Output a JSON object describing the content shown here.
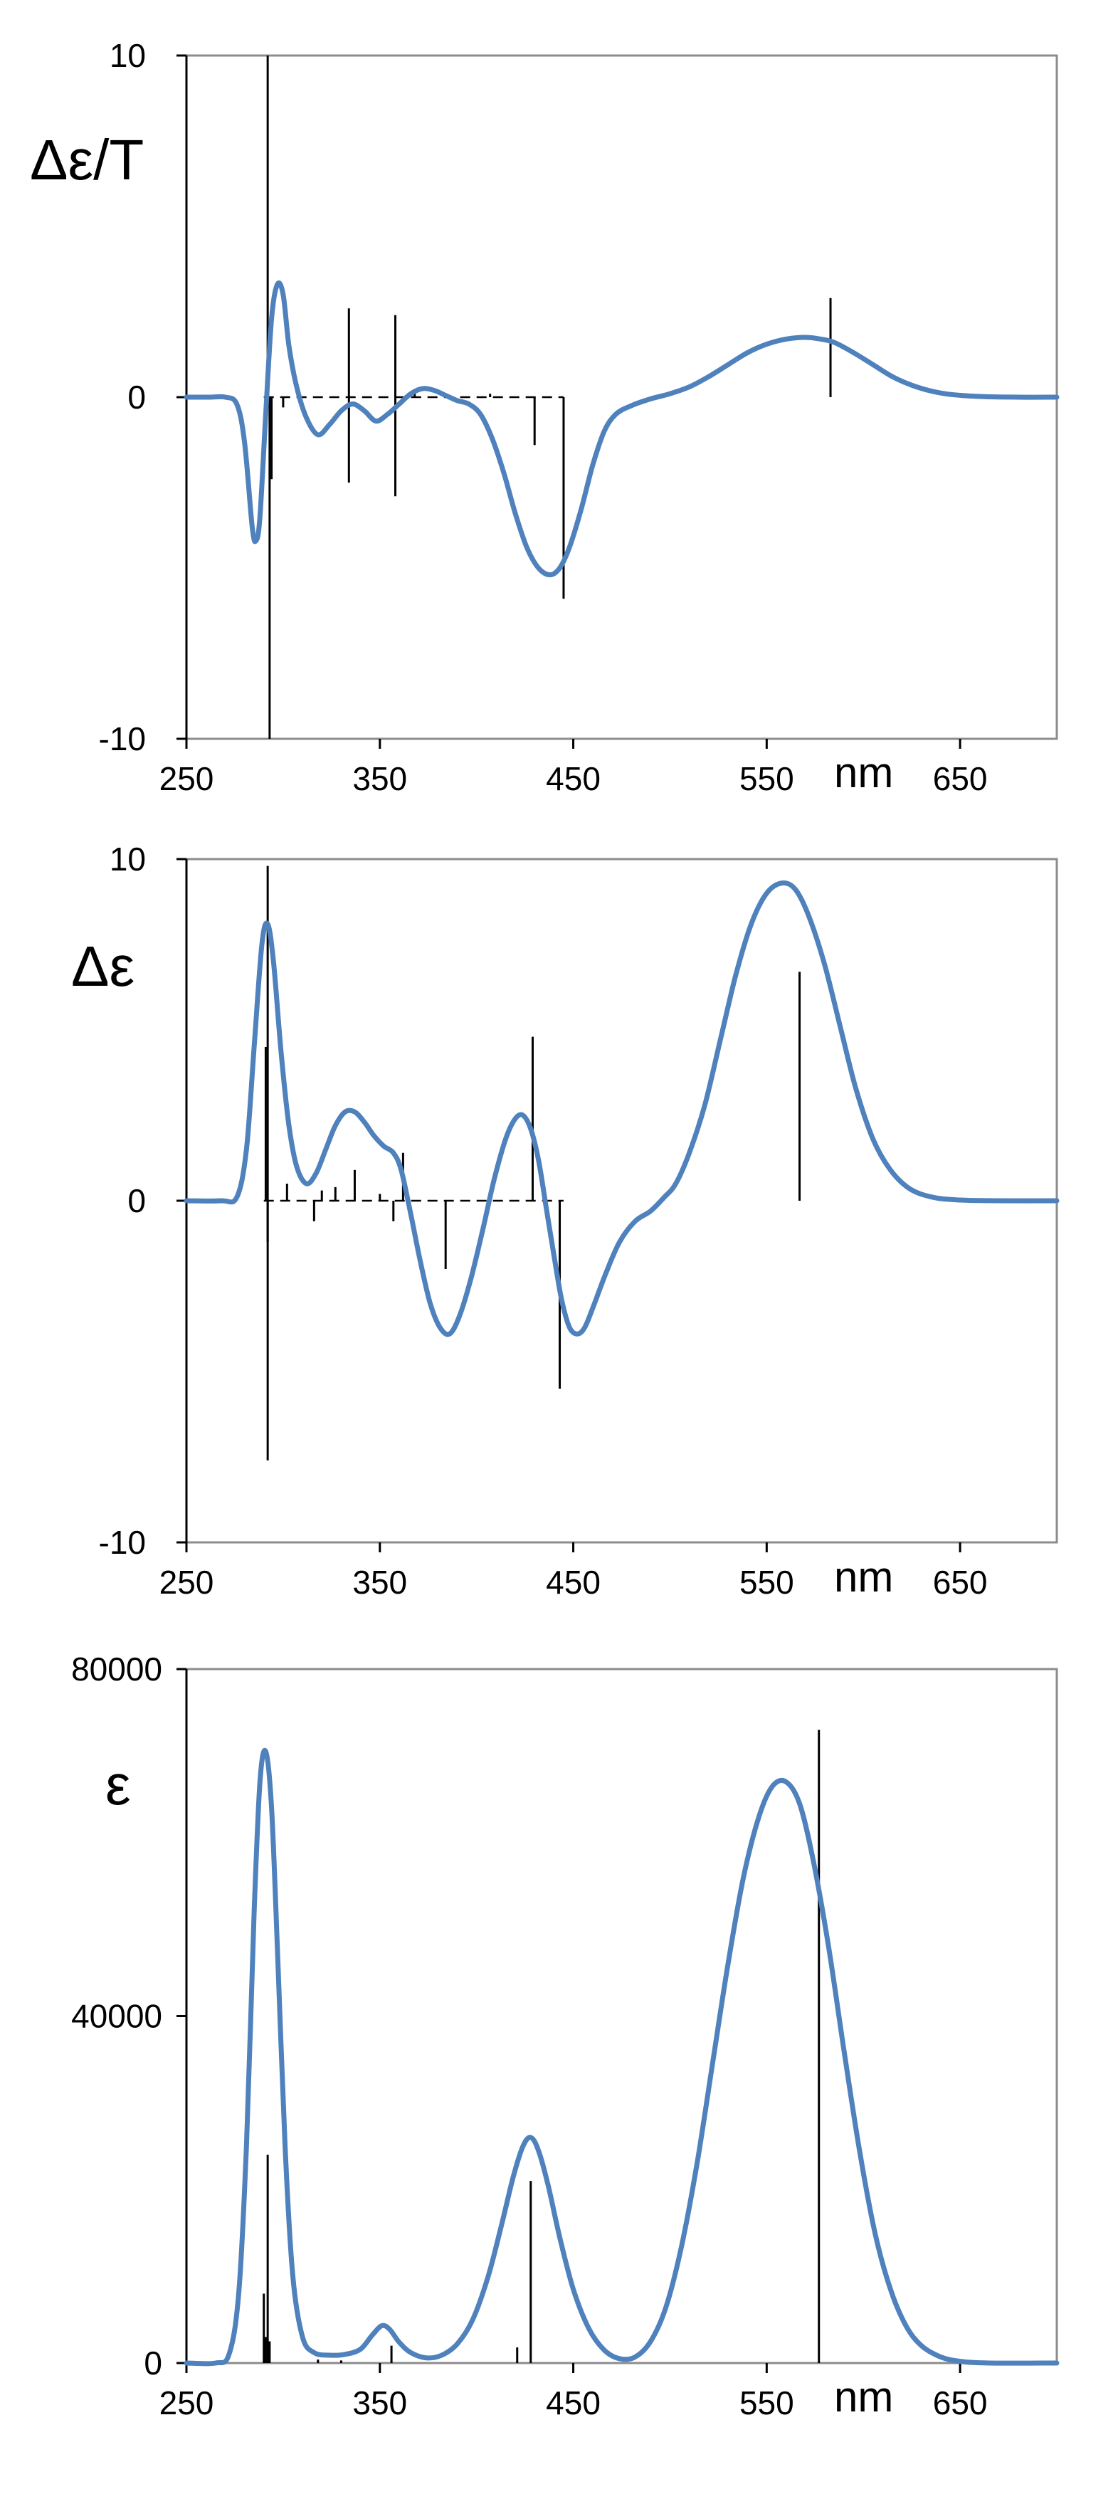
{
  "chart_data": [
    {
      "type": "line",
      "ylabel": "Δε/T",
      "x_unit": "nm",
      "xlim": [
        250,
        700
      ],
      "ylim": [
        -10,
        10
      ],
      "xticks": [
        250,
        350,
        450,
        550,
        650
      ],
      "yticks": [
        10,
        0,
        -10
      ],
      "grid": false,
      "baseline_dashed": [
        290,
        445
      ],
      "series": [
        {
          "color": "#4f81bd",
          "points": [
            [
              250,
              0
            ],
            [
              262,
              0
            ],
            [
              270,
              0
            ],
            [
              276,
              -0.2
            ],
            [
              280,
              -1.3
            ],
            [
              284,
              -3.8
            ],
            [
              286,
              -4.2
            ],
            [
              288,
              -3.5
            ],
            [
              291,
              -0.5
            ],
            [
              294,
              2.3
            ],
            [
              297,
              3.3
            ],
            [
              300,
              3.0
            ],
            [
              303,
              1.5
            ],
            [
              307,
              0.3
            ],
            [
              312,
              -0.6
            ],
            [
              318,
              -1.1
            ],
            [
              324,
              -0.8
            ],
            [
              330,
              -0.4
            ],
            [
              336,
              -0.2
            ],
            [
              342,
              -0.4
            ],
            [
              348,
              -0.7
            ],
            [
              354,
              -0.5
            ],
            [
              360,
              -0.2
            ],
            [
              366,
              0.1
            ],
            [
              372,
              0.25
            ],
            [
              378,
              0.2
            ],
            [
              384,
              0.05
            ],
            [
              390,
              -0.1
            ],
            [
              396,
              -0.2
            ],
            [
              402,
              -0.5
            ],
            [
              408,
              -1.2
            ],
            [
              414,
              -2.2
            ],
            [
              420,
              -3.4
            ],
            [
              426,
              -4.4
            ],
            [
              432,
              -5.0
            ],
            [
              438,
              -5.2
            ],
            [
              443,
              -5.0
            ],
            [
              448,
              -4.4
            ],
            [
              454,
              -3.3
            ],
            [
              460,
              -2.0
            ],
            [
              466,
              -1.0
            ],
            [
              472,
              -0.5
            ],
            [
              480,
              -0.25
            ],
            [
              490,
              -0.05
            ],
            [
              500,
              0.1
            ],
            [
              510,
              0.3
            ],
            [
              520,
              0.6
            ],
            [
              530,
              0.95
            ],
            [
              540,
              1.3
            ],
            [
              550,
              1.55
            ],
            [
              560,
              1.7
            ],
            [
              570,
              1.75
            ],
            [
              578,
              1.7
            ],
            [
              585,
              1.6
            ],
            [
              595,
              1.3
            ],
            [
              605,
              0.95
            ],
            [
              615,
              0.6
            ],
            [
              625,
              0.35
            ],
            [
              635,
              0.18
            ],
            [
              645,
              0.08
            ],
            [
              660,
              0.02
            ],
            [
              680,
              0
            ],
            [
              700,
              0
            ]
          ]
        }
      ],
      "sticks": [
        [
          292,
          10
        ],
        [
          293,
          -10
        ],
        [
          294,
          -2.4
        ],
        [
          300,
          -0.3
        ],
        [
          334,
          2.6
        ],
        [
          334,
          -2.5
        ],
        [
          358,
          2.4
        ],
        [
          358,
          -2.9
        ],
        [
          368,
          0.2
        ],
        [
          407,
          0.1
        ],
        [
          430,
          -1.4
        ],
        [
          445,
          -5.9
        ],
        [
          583,
          2.9
        ]
      ]
    },
    {
      "type": "line",
      "ylabel": "Δε",
      "x_unit": "nm",
      "xlim": [
        250,
        700
      ],
      "ylim": [
        -10,
        10
      ],
      "xticks": [
        250,
        350,
        450,
        550,
        650
      ],
      "yticks": [
        10,
        0,
        -10
      ],
      "grid": false,
      "baseline_dashed": [
        290,
        445
      ],
      "series": [
        {
          "color": "#4f81bd",
          "points": [
            [
              250,
              0
            ],
            [
              268,
              0
            ],
            [
              276,
              0.1
            ],
            [
              281,
              1.5
            ],
            [
              285,
              4.5
            ],
            [
              289,
              7.5
            ],
            [
              292,
              8.1
            ],
            [
              295,
              7.0
            ],
            [
              299,
              4.3
            ],
            [
              303,
              2.2
            ],
            [
              307,
              1.0
            ],
            [
              312,
              0.5
            ],
            [
              317,
              0.8
            ],
            [
              322,
              1.5
            ],
            [
              327,
              2.2
            ],
            [
              332,
              2.6
            ],
            [
              337,
              2.6
            ],
            [
              342,
              2.3
            ],
            [
              347,
              1.9
            ],
            [
              352,
              1.6
            ],
            [
              357,
              1.4
            ],
            [
              361,
              0.9
            ],
            [
              366,
              -0.4
            ],
            [
              371,
              -1.8
            ],
            [
              376,
              -3.0
            ],
            [
              381,
              -3.7
            ],
            [
              386,
              -3.9
            ],
            [
              391,
              -3.4
            ],
            [
              397,
              -2.3
            ],
            [
              403,
              -0.9
            ],
            [
              409,
              0.6
            ],
            [
              415,
              1.8
            ],
            [
              420,
              2.4
            ],
            [
              424,
              2.5
            ],
            [
              428,
              2.1
            ],
            [
              432,
              1.2
            ],
            [
              436,
              -0.2
            ],
            [
              440,
              -1.6
            ],
            [
              444,
              -2.9
            ],
            [
              448,
              -3.7
            ],
            [
              452,
              -3.9
            ],
            [
              456,
              -3.7
            ],
            [
              461,
              -3.0
            ],
            [
              467,
              -2.1
            ],
            [
              474,
              -1.2
            ],
            [
              482,
              -0.6
            ],
            [
              490,
              -0.3
            ],
            [
              497,
              0.1
            ],
            [
              503,
              0.5
            ],
            [
              510,
              1.4
            ],
            [
              518,
              2.8
            ],
            [
              526,
              4.7
            ],
            [
              534,
              6.6
            ],
            [
              542,
              8.1
            ],
            [
              550,
              9.0
            ],
            [
              558,
              9.3
            ],
            [
              565,
              9.1
            ],
            [
              572,
              8.3
            ],
            [
              580,
              6.9
            ],
            [
              588,
              5.1
            ],
            [
              596,
              3.3
            ],
            [
              605,
              1.8
            ],
            [
              614,
              0.9
            ],
            [
              624,
              0.35
            ],
            [
              636,
              0.1
            ],
            [
              650,
              0.02
            ],
            [
              670,
              0
            ],
            [
              700,
              0
            ]
          ]
        }
      ],
      "sticks": [
        [
          292,
          9.8
        ],
        [
          292,
          -7.6
        ],
        [
          291,
          4.5
        ],
        [
          292,
          -1.2
        ],
        [
          302,
          0.5
        ],
        [
          316,
          -0.6
        ],
        [
          320,
          0.3
        ],
        [
          327,
          0.4
        ],
        [
          337,
          0.9
        ],
        [
          350,
          0.2
        ],
        [
          357,
          -0.6
        ],
        [
          362,
          1.4
        ],
        [
          384,
          -2.0
        ],
        [
          429,
          4.8
        ],
        [
          443,
          -5.5
        ],
        [
          567,
          6.7
        ]
      ]
    },
    {
      "type": "line",
      "ylabel": "ε",
      "x_unit": "nm",
      "xlim": [
        250,
        700
      ],
      "ylim": [
        0,
        80000
      ],
      "xticks": [
        250,
        350,
        450,
        550,
        650
      ],
      "yticks": [
        80000,
        40000,
        0
      ],
      "grid": false,
      "series": [
        {
          "color": "#4f81bd",
          "points": [
            [
              250,
              0
            ],
            [
              265,
              0
            ],
            [
              272,
              1000
            ],
            [
              277,
              8000
            ],
            [
              281,
              25000
            ],
            [
              285,
              52000
            ],
            [
              288,
              67000
            ],
            [
              291,
              70500
            ],
            [
              294,
              64000
            ],
            [
              297,
              48000
            ],
            [
              301,
              25000
            ],
            [
              305,
              10000
            ],
            [
              310,
              3000
            ],
            [
              316,
              1200
            ],
            [
              324,
              900
            ],
            [
              332,
              1000
            ],
            [
              340,
              1600
            ],
            [
              346,
              3200
            ],
            [
              351,
              4300
            ],
            [
              355,
              3900
            ],
            [
              360,
              2400
            ],
            [
              366,
              1200
            ],
            [
              374,
              600
            ],
            [
              382,
              900
            ],
            [
              390,
              2200
            ],
            [
              398,
              5000
            ],
            [
              406,
              10000
            ],
            [
              413,
              16000
            ],
            [
              419,
              21500
            ],
            [
              424,
              25000
            ],
            [
              428,
              26000
            ],
            [
              432,
              24500
            ],
            [
              437,
              20500
            ],
            [
              443,
              14500
            ],
            [
              450,
              8500
            ],
            [
              458,
              4000
            ],
            [
              466,
              1500
            ],
            [
              474,
              500
            ],
            [
              482,
              700
            ],
            [
              490,
              2500
            ],
            [
              498,
              6500
            ],
            [
              506,
              13500
            ],
            [
              514,
              23000
            ],
            [
              522,
              34500
            ],
            [
              530,
              46000
            ],
            [
              538,
              56000
            ],
            [
              546,
              63000
            ],
            [
              553,
              66500
            ],
            [
              560,
              67000
            ],
            [
              567,
              64500
            ],
            [
              574,
              58000
            ],
            [
              582,
              48000
            ],
            [
              590,
              36000
            ],
            [
              598,
              24500
            ],
            [
              606,
              15000
            ],
            [
              614,
              8500
            ],
            [
              622,
              4300
            ],
            [
              630,
              2000
            ],
            [
              640,
              700
            ],
            [
              650,
              200
            ],
            [
              665,
              0
            ],
            [
              700,
              0
            ]
          ]
        }
      ],
      "sticks": [
        [
          290,
          8000
        ],
        [
          291,
          3000
        ],
        [
          292,
          24000
        ],
        [
          293,
          2500
        ],
        [
          318,
          400
        ],
        [
          330,
          300
        ],
        [
          356,
          2000
        ],
        [
          421,
          1800
        ],
        [
          428,
          21000
        ],
        [
          577,
          73000
        ]
      ]
    }
  ]
}
